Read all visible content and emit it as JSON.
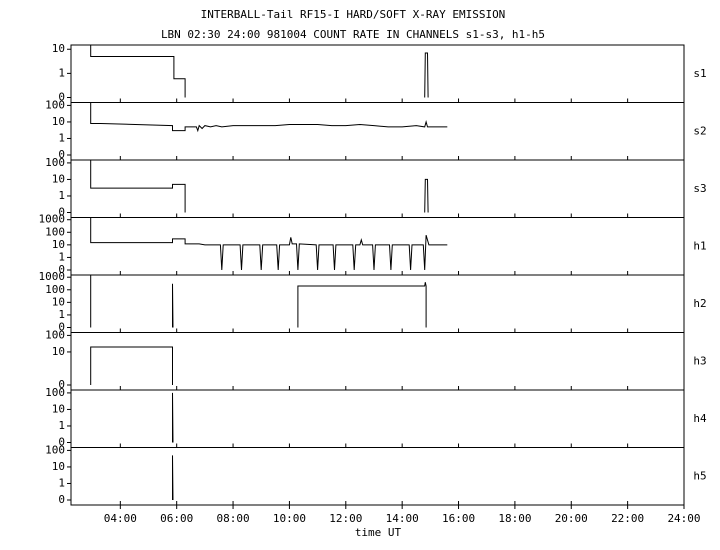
{
  "chart_data": {
    "type": "line",
    "title": "INTERBALL-Tail RF15-I HARD/SOFT X-RAY EMISSION",
    "subtitle": "LBN 02:30 24:00 981004  COUNT RATE IN CHANNELS s1-s3, h1-h5",
    "xlabel": "time UT",
    "xlim": [
      2.25,
      24
    ],
    "xticks": [
      {
        "value": 4,
        "label": "04:00"
      },
      {
        "value": 6,
        "label": "06:00"
      },
      {
        "value": 8,
        "label": "08:00"
      },
      {
        "value": 10,
        "label": "10:00"
      },
      {
        "value": 12,
        "label": "12:00"
      },
      {
        "value": 14,
        "label": "14:00"
      },
      {
        "value": 16,
        "label": "16:00"
      },
      {
        "value": 18,
        "label": "18:00"
      },
      {
        "value": 20,
        "label": "20:00"
      },
      {
        "value": 22,
        "label": "22:00"
      },
      {
        "value": 24,
        "label": "24:00"
      }
    ],
    "yscale": "symlog",
    "color": "#000000",
    "panels": [
      {
        "name": "s1",
        "ylim": [
          0,
          15
        ],
        "yticks": [
          0,
          1,
          10
        ],
        "x": [
          2.95,
          2.95,
          5.9,
          5.9,
          6.3,
          6.3,
          null,
          14.8,
          14.82,
          14.9,
          14.92
        ],
        "values": [
          15,
          5,
          5,
          0.6,
          0.6,
          0,
          null,
          0,
          7,
          7,
          0
        ]
      },
      {
        "name": "s2",
        "ylim": [
          0,
          150
        ],
        "yticks": [
          0,
          1,
          10,
          100
        ],
        "x": [
          2.95,
          2.95,
          3.3,
          5.85,
          5.85,
          6.3,
          6.3,
          6.7,
          6.75,
          6.8,
          6.9,
          7.0,
          7.2,
          7.4,
          7.6,
          8,
          8.5,
          9,
          9.5,
          10,
          10.5,
          11,
          11.5,
          12,
          12.5,
          13,
          13.5,
          14,
          14.5,
          14.8,
          14.85,
          14.9,
          15.2,
          15.6
        ],
        "values": [
          150,
          8,
          8,
          6,
          3,
          3,
          5,
          5,
          3,
          6,
          4,
          6,
          5,
          6,
          5,
          6,
          6,
          6,
          6,
          7,
          7,
          7,
          6,
          6,
          7,
          6,
          5,
          5,
          6,
          5,
          10,
          5,
          5,
          5
        ]
      },
      {
        "name": "s3",
        "ylim": [
          0,
          150
        ],
        "yticks": [
          0,
          1,
          10,
          100
        ],
        "x": [
          2.95,
          2.95,
          5.85,
          5.85,
          6.3,
          6.3,
          null,
          14.8,
          14.82,
          14.9,
          14.92
        ],
        "values": [
          150,
          3,
          3,
          5,
          5,
          0,
          null,
          0,
          10,
          10,
          0
        ]
      },
      {
        "name": "h1",
        "ylim": [
          0,
          1500
        ],
        "yticks": [
          0,
          1,
          10,
          100,
          1000
        ],
        "x": [
          2.95,
          2.95,
          5.85,
          5.85,
          6.3,
          6.3,
          6.8,
          7.0,
          7.55,
          7.6,
          7.65,
          8.25,
          8.3,
          8.35,
          8.95,
          9.0,
          9.05,
          9.55,
          9.6,
          9.65,
          10.0,
          10.05,
          10.1,
          10.25,
          10.3,
          10.35,
          10.95,
          11.0,
          11.05,
          11.55,
          11.6,
          11.65,
          12.25,
          12.3,
          12.35,
          12.5,
          12.55,
          12.6,
          12.95,
          13.0,
          13.05,
          13.55,
          13.6,
          13.65,
          14.25,
          14.3,
          14.35,
          14.75,
          14.8,
          14.85,
          14.95,
          15.2,
          15.6
        ],
        "values": [
          1500,
          15,
          15,
          30,
          30,
          12,
          12,
          10,
          10,
          0,
          10,
          10,
          0,
          10,
          10,
          0,
          10,
          10,
          0,
          10,
          10,
          40,
          12,
          12,
          0,
          12,
          10,
          0,
          10,
          10,
          0,
          10,
          10,
          0,
          10,
          10,
          25,
          10,
          10,
          0,
          10,
          10,
          0,
          10,
          10,
          0,
          10,
          10,
          0,
          60,
          10,
          10,
          10
        ]
      },
      {
        "name": "h2",
        "ylim": [
          0,
          1500
        ],
        "yticks": [
          0,
          1,
          10,
          100,
          1000
        ],
        "x": [
          2.95,
          2.95,
          null,
          5.85,
          5.85,
          5.87,
          null,
          10.3,
          10.3,
          14.8,
          14.82,
          14.85,
          14.85
        ],
        "values": [
          1500,
          0,
          null,
          0,
          300,
          0,
          null,
          0,
          200,
          200,
          400,
          200,
          0
        ]
      },
      {
        "name": "h3",
        "ylim": [
          0,
          150
        ],
        "yticks": [
          0,
          10,
          100
        ],
        "x": [
          2.95,
          2.95,
          5.85,
          5.85
        ],
        "values": [
          0,
          20,
          20,
          0
        ]
      },
      {
        "name": "h4",
        "ylim": [
          0,
          150
        ],
        "yticks": [
          0,
          1,
          10,
          100
        ],
        "x": [
          5.85,
          5.85,
          5.87
        ],
        "values": [
          0,
          100,
          0
        ]
      },
      {
        "name": "h5",
        "ylim": [
          0,
          150
        ],
        "yticks": [
          0,
          1,
          10,
          100
        ],
        "x": [
          5.85,
          5.85,
          5.87
        ],
        "values": [
          0,
          50,
          0
        ]
      }
    ]
  }
}
